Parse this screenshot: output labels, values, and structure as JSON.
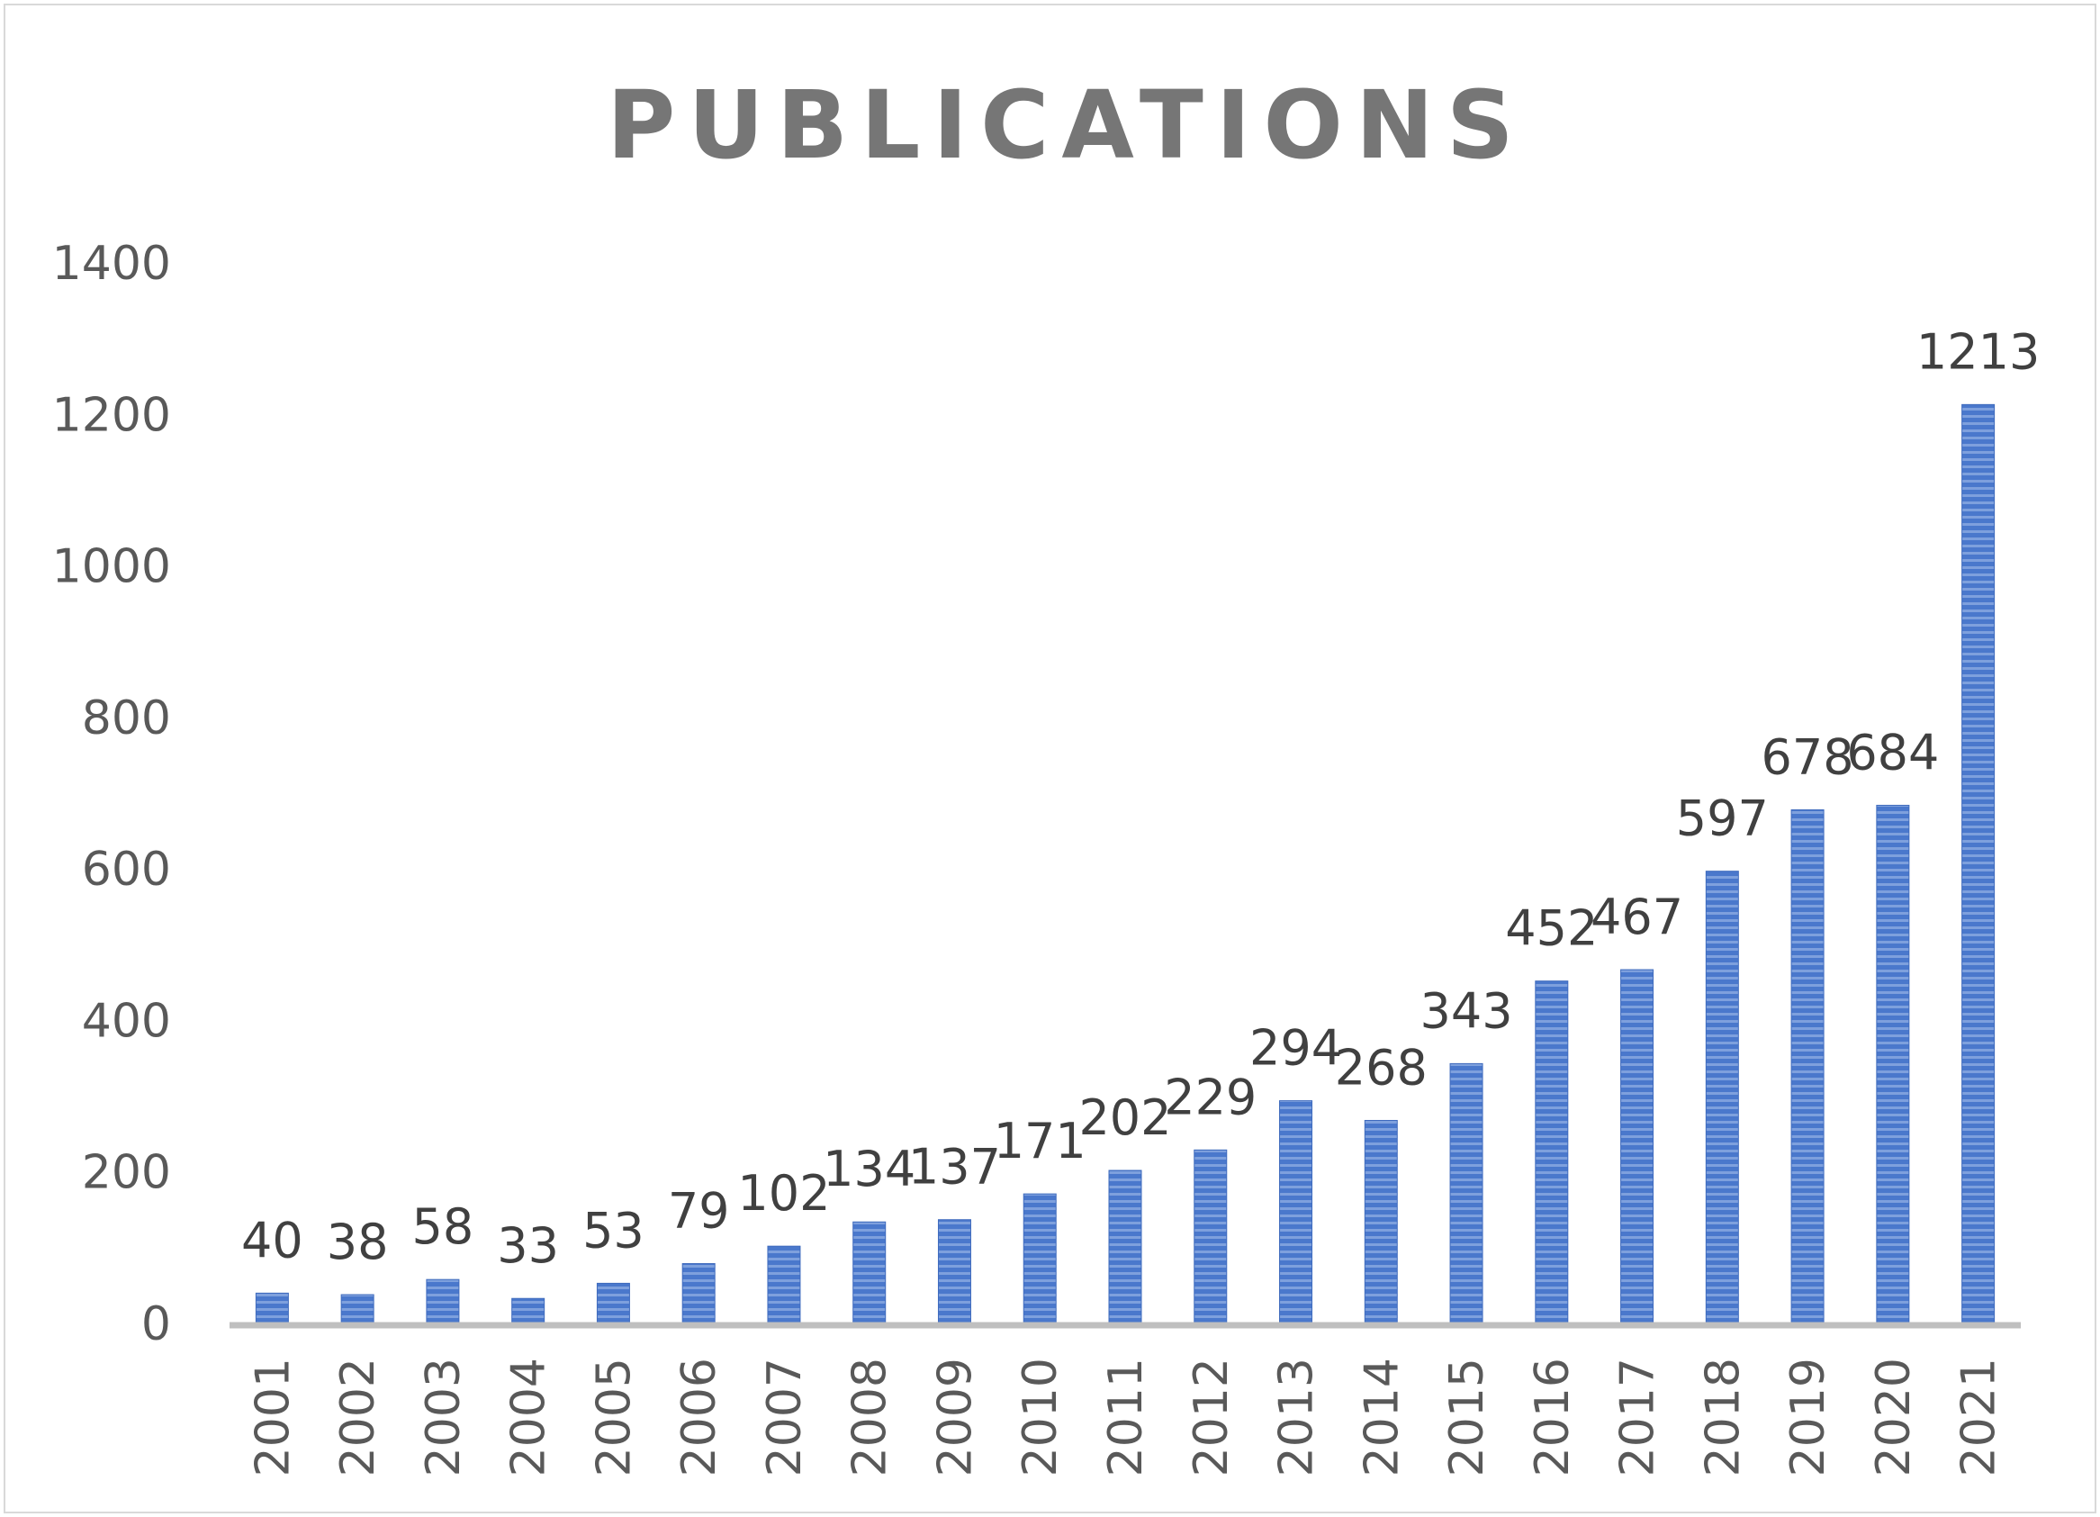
{
  "chart_data": {
    "type": "bar",
    "title": "PUBLICATIONS",
    "xlabel": "",
    "ylabel": "",
    "categories": [
      "2001",
      "2002",
      "2003",
      "2004",
      "2005",
      "2006",
      "2007",
      "2008",
      "2009",
      "2010",
      "2011",
      "2012",
      "2013",
      "2014",
      "2015",
      "2016",
      "2017",
      "2018",
      "2019",
      "2020",
      "2021"
    ],
    "values": [
      40,
      38,
      58,
      33,
      53,
      79,
      102,
      134,
      137,
      171,
      202,
      229,
      294,
      268,
      343,
      452,
      467,
      597,
      678,
      684,
      1213
    ],
    "ylim": [
      0,
      1400
    ],
    "yticks": [
      0,
      200,
      400,
      600,
      800,
      1000,
      1200,
      1400
    ],
    "grid": false,
    "legend": "none",
    "bar_color": "#4472C4",
    "data_labels": true
  }
}
